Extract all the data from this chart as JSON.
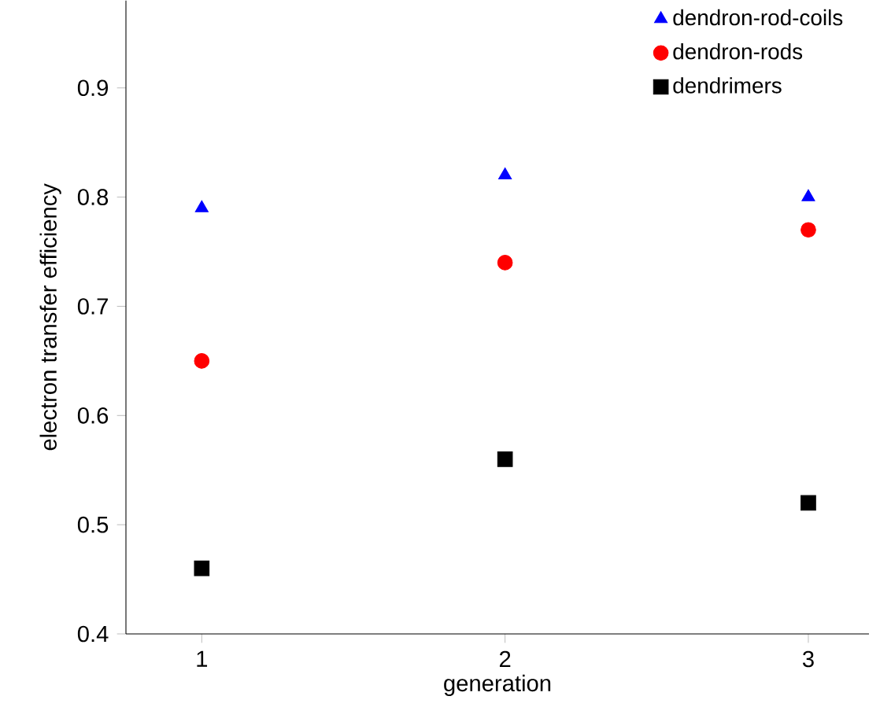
{
  "chart_data": {
    "type": "scatter",
    "xlabel": "generation",
    "ylabel": "electron transfer efficiency",
    "x": [
      1,
      2,
      3
    ],
    "xlim": [
      0.75,
      3.2
    ],
    "ylim": [
      0.4,
      0.98
    ],
    "xticks": [
      1,
      2,
      3
    ],
    "yticks": [
      0.4,
      0.5,
      0.6,
      0.7,
      0.8,
      0.9
    ],
    "legend": "top right",
    "grid": false,
    "series": [
      {
        "name": "dendron-rod-coils",
        "color": "#0000ff",
        "marker": "triangle",
        "values": [
          0.79,
          0.82,
          0.8
        ]
      },
      {
        "name": "dendron-rods",
        "color": "#ff0000",
        "marker": "circle",
        "values": [
          0.65,
          0.74,
          0.77
        ]
      },
      {
        "name": "dendrimers",
        "color": "#000000",
        "marker": "square",
        "values": [
          0.46,
          0.56,
          0.52
        ]
      }
    ]
  }
}
